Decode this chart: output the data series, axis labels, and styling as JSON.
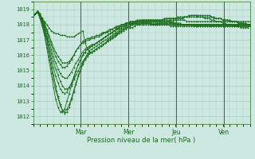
{
  "xlabel": "Pression niveau de la mer( hPa )",
  "ylim": [
    1011.5,
    1019.5
  ],
  "yticks": [
    1012,
    1013,
    1014,
    1015,
    1016,
    1017,
    1018,
    1019
  ],
  "day_labels": [
    "Mar",
    "Mer",
    "Jeu",
    "Ven"
  ],
  "day_positions": [
    0.22,
    0.44,
    0.66,
    0.88
  ],
  "bg_color": "#cce8e0",
  "grid_color": "#a8ccc4",
  "line_color": "#1a6b1a",
  "marker_color": "#1a6b1a",
  "num_points": 97,
  "series": [
    [
      1018.6,
      1018.7,
      1018.8,
      1018.6,
      1018.4,
      1018.2,
      1018.0,
      1017.8,
      1017.6,
      1017.5,
      1017.4,
      1017.4,
      1017.3,
      1017.3,
      1017.3,
      1017.2,
      1017.2,
      1017.2,
      1017.2,
      1017.3,
      1017.4,
      1017.5,
      1017.6,
      1016.8,
      1016.4,
      1016.2,
      1016.2,
      1016.3,
      1016.4,
      1016.5,
      1016.6,
      1016.7,
      1016.8,
      1016.9,
      1017.0,
      1017.1,
      1017.2,
      1017.3,
      1017.5,
      1017.6,
      1017.7,
      1017.8,
      1017.8,
      1017.8,
      1017.8,
      1017.9,
      1018.0,
      1018.0,
      1018.1,
      1018.1,
      1018.1,
      1018.1,
      1018.0,
      1018.0,
      1018.0,
      1018.0,
      1018.1,
      1018.1,
      1018.1,
      1018.1,
      1018.2,
      1018.2,
      1018.2,
      1018.3,
      1018.3,
      1018.3,
      1018.3,
      1018.3,
      1018.2,
      1018.2,
      1018.2,
      1018.2,
      1018.2,
      1018.2,
      1018.2,
      1018.2,
      1018.2,
      1018.2,
      1018.2,
      1018.2,
      1018.2,
      1018.2,
      1018.2,
      1018.2,
      1018.2,
      1018.2,
      1018.2,
      1018.2,
      1018.2,
      1018.2,
      1018.2,
      1018.2,
      1018.2,
      1018.2,
      1018.2,
      1018.2,
      1018.2
    ],
    [
      1018.6,
      1018.7,
      1018.8,
      1018.5,
      1018.1,
      1017.6,
      1017.0,
      1016.3,
      1015.5,
      1014.7,
      1014.0,
      1013.3,
      1012.8,
      1012.4,
      1012.2,
      1012.3,
      1012.6,
      1013.1,
      1013.6,
      1014.1,
      1014.6,
      1015.0,
      1015.4,
      1015.7,
      1015.9,
      1016.1,
      1016.2,
      1016.3,
      1016.4,
      1016.5,
      1016.6,
      1016.7,
      1016.8,
      1016.9,
      1017.0,
      1017.1,
      1017.2,
      1017.3,
      1017.4,
      1017.5,
      1017.6,
      1017.7,
      1017.8,
      1017.9,
      1018.0,
      1018.0,
      1018.0,
      1018.0,
      1018.0,
      1018.0,
      1018.0,
      1018.0,
      1018.0,
      1018.0,
      1018.0,
      1018.0,
      1018.0,
      1018.0,
      1018.0,
      1018.0,
      1018.0,
      1018.0,
      1018.0,
      1018.0,
      1018.0,
      1018.0,
      1018.0,
      1018.0,
      1018.0,
      1018.0,
      1018.0,
      1018.0,
      1018.0,
      1018.0,
      1018.0,
      1018.0,
      1018.0,
      1018.0,
      1018.0,
      1018.0,
      1018.0,
      1018.0,
      1018.0,
      1018.0,
      1018.0,
      1018.0,
      1018.0,
      1018.0,
      1018.0,
      1018.0,
      1018.0,
      1018.0,
      1018.0,
      1018.0,
      1018.0,
      1018.0,
      1018.0
    ],
    [
      1018.6,
      1018.7,
      1018.8,
      1018.4,
      1017.9,
      1017.3,
      1016.5,
      1015.7,
      1014.8,
      1013.9,
      1013.1,
      1012.6,
      1012.3,
      1012.3,
      1012.5,
      1013.0,
      1013.5,
      1014.0,
      1014.5,
      1015.0,
      1015.4,
      1015.7,
      1016.0,
      1016.2,
      1016.4,
      1016.5,
      1016.6,
      1016.7,
      1016.8,
      1016.9,
      1017.0,
      1017.1,
      1017.2,
      1017.3,
      1017.4,
      1017.5,
      1017.6,
      1017.7,
      1017.7,
      1017.8,
      1017.9,
      1017.9,
      1018.0,
      1018.0,
      1018.1,
      1018.1,
      1018.1,
      1018.1,
      1018.1,
      1018.1,
      1018.1,
      1018.1,
      1018.1,
      1018.0,
      1018.0,
      1018.0,
      1018.0,
      1018.0,
      1018.0,
      1018.0,
      1018.0,
      1017.9,
      1017.9,
      1017.9,
      1017.9,
      1017.9,
      1017.9,
      1017.9,
      1017.9,
      1017.9,
      1017.9,
      1017.9,
      1017.9,
      1017.9,
      1017.9,
      1017.9,
      1017.9,
      1017.9,
      1017.9,
      1017.9,
      1017.9,
      1017.9,
      1017.9,
      1017.9,
      1017.9,
      1017.9,
      1017.9,
      1017.9,
      1017.9,
      1017.9,
      1017.9,
      1017.9,
      1017.9,
      1017.9,
      1017.9,
      1017.9,
      1017.9
    ],
    [
      1018.6,
      1018.7,
      1018.9,
      1018.6,
      1018.2,
      1017.7,
      1017.2,
      1016.7,
      1016.1,
      1015.6,
      1015.1,
      1014.7,
      1014.3,
      1014.0,
      1013.8,
      1013.8,
      1013.9,
      1014.1,
      1014.4,
      1014.7,
      1015.0,
      1015.3,
      1015.6,
      1015.8,
      1016.0,
      1016.1,
      1016.2,
      1016.3,
      1016.4,
      1016.5,
      1016.6,
      1016.7,
      1016.8,
      1017.0,
      1017.1,
      1017.2,
      1017.3,
      1017.4,
      1017.5,
      1017.6,
      1017.7,
      1017.8,
      1017.9,
      1018.0,
      1018.0,
      1018.1,
      1018.1,
      1018.2,
      1018.2,
      1018.2,
      1018.2,
      1018.2,
      1018.2,
      1018.2,
      1018.2,
      1018.2,
      1018.2,
      1018.3,
      1018.3,
      1018.3,
      1018.3,
      1018.3,
      1018.3,
      1018.4,
      1018.4,
      1018.4,
      1018.4,
      1018.5,
      1018.5,
      1018.5,
      1018.6,
      1018.6,
      1018.6,
      1018.6,
      1018.6,
      1018.6,
      1018.6,
      1018.6,
      1018.6,
      1018.5,
      1018.5,
      1018.4,
      1018.4,
      1018.4,
      1018.3,
      1018.3,
      1018.3,
      1018.2,
      1018.2,
      1018.2,
      1018.2,
      1018.1,
      1018.1,
      1018.1,
      1018.1,
      1018.0,
      1018.0
    ],
    [
      1018.6,
      1018.7,
      1018.8,
      1018.5,
      1018.0,
      1017.4,
      1016.7,
      1015.9,
      1015.2,
      1014.4,
      1013.7,
      1013.2,
      1012.7,
      1012.4,
      1012.3,
      1012.5,
      1012.8,
      1013.2,
      1013.7,
      1014.2,
      1014.7,
      1015.1,
      1015.5,
      1015.8,
      1016.1,
      1016.3,
      1016.4,
      1016.5,
      1016.6,
      1016.7,
      1016.8,
      1016.9,
      1017.0,
      1017.1,
      1017.2,
      1017.3,
      1017.4,
      1017.5,
      1017.6,
      1017.7,
      1017.8,
      1017.9,
      1018.0,
      1018.0,
      1018.0,
      1018.1,
      1018.1,
      1018.1,
      1018.1,
      1018.1,
      1018.1,
      1018.1,
      1018.1,
      1018.1,
      1018.1,
      1018.1,
      1018.1,
      1018.1,
      1018.1,
      1018.1,
      1018.1,
      1018.1,
      1018.0,
      1018.0,
      1018.0,
      1018.0,
      1018.0,
      1018.0,
      1018.0,
      1018.0,
      1018.0,
      1018.0,
      1018.0,
      1018.0,
      1018.0,
      1018.0,
      1018.0,
      1018.0,
      1018.0,
      1018.0,
      1018.0,
      1018.0,
      1018.0,
      1018.0,
      1018.0,
      1018.0,
      1018.0,
      1018.0,
      1018.0,
      1018.0,
      1018.0,
      1018.0,
      1018.0,
      1018.0,
      1018.0,
      1018.0,
      1018.0
    ],
    [
      1018.6,
      1018.7,
      1018.8,
      1018.6,
      1018.3,
      1017.9,
      1017.4,
      1016.9,
      1016.4,
      1015.9,
      1015.5,
      1015.1,
      1014.8,
      1014.6,
      1014.5,
      1014.5,
      1014.7,
      1014.9,
      1015.2,
      1015.5,
      1015.7,
      1016.0,
      1016.2,
      1016.4,
      1016.5,
      1016.6,
      1016.7,
      1016.7,
      1016.8,
      1016.9,
      1017.0,
      1017.1,
      1017.2,
      1017.3,
      1017.4,
      1017.5,
      1017.6,
      1017.7,
      1017.8,
      1017.9,
      1018.0,
      1018.0,
      1018.1,
      1018.1,
      1018.1,
      1018.2,
      1018.2,
      1018.2,
      1018.2,
      1018.2,
      1018.2,
      1018.2,
      1018.2,
      1018.2,
      1018.2,
      1018.2,
      1018.2,
      1018.2,
      1018.2,
      1018.2,
      1018.2,
      1018.2,
      1018.1,
      1018.1,
      1018.1,
      1018.1,
      1018.0,
      1018.0,
      1018.0,
      1018.0,
      1018.0,
      1017.9,
      1017.9,
      1017.9,
      1017.9,
      1017.9,
      1017.9,
      1017.9,
      1017.9,
      1017.9,
      1017.9,
      1017.9,
      1017.9,
      1017.9,
      1017.9,
      1017.9,
      1017.9,
      1017.9,
      1017.9,
      1017.9,
      1017.9,
      1017.9,
      1017.9,
      1017.9,
      1017.9,
      1017.9,
      1017.9
    ],
    [
      1018.6,
      1018.7,
      1018.9,
      1018.7,
      1018.4,
      1018.1,
      1017.7,
      1017.3,
      1016.9,
      1016.5,
      1016.2,
      1015.9,
      1015.7,
      1015.5,
      1015.5,
      1015.5,
      1015.6,
      1015.8,
      1016.0,
      1016.3,
      1016.5,
      1016.7,
      1016.8,
      1016.9,
      1017.0,
      1017.0,
      1017.1,
      1017.1,
      1017.2,
      1017.2,
      1017.3,
      1017.4,
      1017.5,
      1017.5,
      1017.6,
      1017.7,
      1017.8,
      1017.8,
      1017.9,
      1018.0,
      1018.0,
      1018.1,
      1018.1,
      1018.2,
      1018.2,
      1018.2,
      1018.3,
      1018.3,
      1018.3,
      1018.3,
      1018.3,
      1018.3,
      1018.3,
      1018.3,
      1018.3,
      1018.3,
      1018.3,
      1018.3,
      1018.4,
      1018.4,
      1018.4,
      1018.4,
      1018.4,
      1018.4,
      1018.4,
      1018.4,
      1018.4,
      1018.5,
      1018.5,
      1018.5,
      1018.5,
      1018.5,
      1018.5,
      1018.5,
      1018.5,
      1018.5,
      1018.5,
      1018.5,
      1018.5,
      1018.5,
      1018.4,
      1018.4,
      1018.4,
      1018.4,
      1018.3,
      1018.3,
      1018.3,
      1018.3,
      1018.2,
      1018.2,
      1018.2,
      1018.1,
      1018.1,
      1018.1,
      1018.0,
      1018.0,
      1018.0
    ],
    [
      1018.6,
      1018.7,
      1018.8,
      1018.6,
      1018.2,
      1017.7,
      1017.1,
      1016.4,
      1015.8,
      1015.2,
      1014.6,
      1014.2,
      1013.8,
      1013.6,
      1013.5,
      1013.6,
      1013.9,
      1014.2,
      1014.6,
      1015.0,
      1015.4,
      1015.7,
      1016.0,
      1016.2,
      1016.4,
      1016.5,
      1016.6,
      1016.7,
      1016.8,
      1016.9,
      1017.0,
      1017.1,
      1017.2,
      1017.3,
      1017.4,
      1017.5,
      1017.6,
      1017.7,
      1017.8,
      1017.9,
      1018.0,
      1018.0,
      1018.1,
      1018.1,
      1018.1,
      1018.1,
      1018.2,
      1018.2,
      1018.2,
      1018.2,
      1018.2,
      1018.2,
      1018.2,
      1018.2,
      1018.2,
      1018.2,
      1018.2,
      1018.2,
      1018.2,
      1018.2,
      1018.2,
      1018.1,
      1018.1,
      1018.1,
      1018.0,
      1018.0,
      1018.0,
      1018.0,
      1018.0,
      1018.0,
      1018.0,
      1018.0,
      1018.0,
      1018.0,
      1018.0,
      1018.0,
      1018.0,
      1018.0,
      1018.0,
      1018.0,
      1018.0,
      1018.0,
      1018.0,
      1018.0,
      1018.0,
      1018.0,
      1018.0,
      1018.0,
      1018.0,
      1018.0,
      1018.0,
      1018.0,
      1018.0,
      1018.0,
      1018.0,
      1018.0,
      1018.0
    ],
    [
      1018.6,
      1018.7,
      1018.9,
      1018.7,
      1018.4,
      1018.0,
      1017.6,
      1017.2,
      1016.7,
      1016.3,
      1015.9,
      1015.6,
      1015.4,
      1015.2,
      1015.2,
      1015.3,
      1015.5,
      1015.7,
      1016.0,
      1016.3,
      1016.5,
      1016.7,
      1016.9,
      1017.0,
      1017.1,
      1017.1,
      1017.2,
      1017.2,
      1017.3,
      1017.3,
      1017.4,
      1017.5,
      1017.5,
      1017.6,
      1017.7,
      1017.7,
      1017.8,
      1017.9,
      1017.9,
      1018.0,
      1018.0,
      1018.1,
      1018.1,
      1018.2,
      1018.2,
      1018.2,
      1018.2,
      1018.2,
      1018.3,
      1018.3,
      1018.3,
      1018.3,
      1018.3,
      1018.3,
      1018.3,
      1018.3,
      1018.3,
      1018.3,
      1018.3,
      1018.4,
      1018.4,
      1018.4,
      1018.4,
      1018.4,
      1018.5,
      1018.5,
      1018.5,
      1018.5,
      1018.5,
      1018.6,
      1018.6,
      1018.6,
      1018.6,
      1018.5,
      1018.5,
      1018.5,
      1018.4,
      1018.4,
      1018.4,
      1018.3,
      1018.3,
      1018.2,
      1018.2,
      1018.2,
      1018.1,
      1018.1,
      1018.0,
      1018.0,
      1018.0,
      1017.9,
      1017.9,
      1017.9,
      1017.8,
      1017.8,
      1017.8,
      1017.8,
      1018.0
    ]
  ]
}
